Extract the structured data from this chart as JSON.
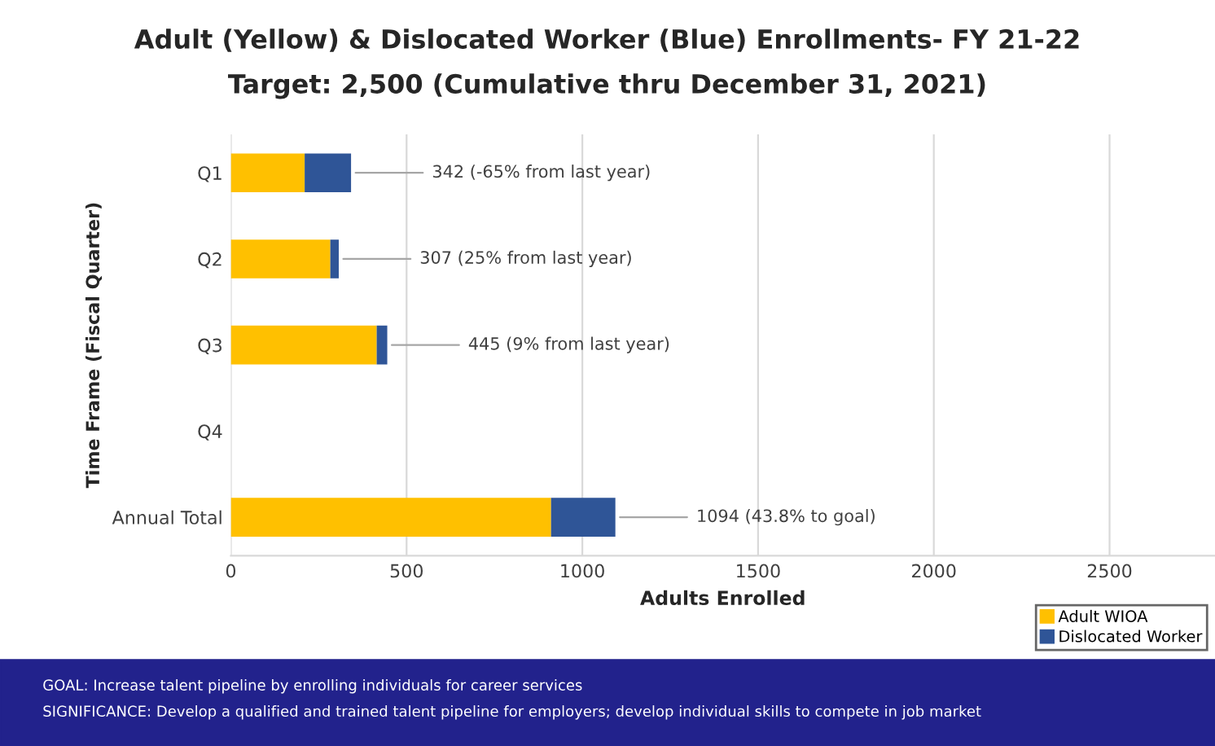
{
  "chart_data": {
    "type": "bar",
    "orientation": "horizontal",
    "stacked": true,
    "title": "Adult (Yellow) & Dislocated Worker (Blue) Enrollments- FY 21-22",
    "subtitle": "Target: 2,500 (Cumulative thru December 31, 2021)",
    "xlabel": "Adults Enrolled",
    "ylabel": "Time Frame (Fiscal Quarter)",
    "categories": [
      "Q1",
      "Q2",
      "Q3",
      "Q4",
      "Annual Total"
    ],
    "series": [
      {
        "name": "Adult WIOA",
        "color": "#ffc000",
        "values": [
          210,
          283,
          415,
          null,
          911
        ]
      },
      {
        "name": "Dislocated Worker",
        "color": "#2f5597",
        "values": [
          132,
          24,
          30,
          null,
          183
        ]
      }
    ],
    "xlim": [
      0,
      2800
    ],
    "xticks": [
      0,
      500,
      1000,
      1500,
      2000,
      2500
    ],
    "grid": "x",
    "legend": "bottom right",
    "annotations": [
      {
        "text": "342 (-65% from last year)",
        "x": 342,
        "y": "Q1"
      },
      {
        "text": "307 (25% from last year)",
        "x": 307,
        "y": "Q2"
      },
      {
        "text": "445 (9% from last year)",
        "x": 445,
        "y": "Q3"
      },
      {
        "text": "1094 (43.8% to goal)",
        "x": 1094,
        "y": "Annual Total"
      },
      "GOAL: Increase talent pipeline by enrolling individuals for career services",
      "SIGNIFICANCE: Develop a qualified and trained talent pipeline for employers; develop individual skills to compete in job market"
    ]
  }
}
